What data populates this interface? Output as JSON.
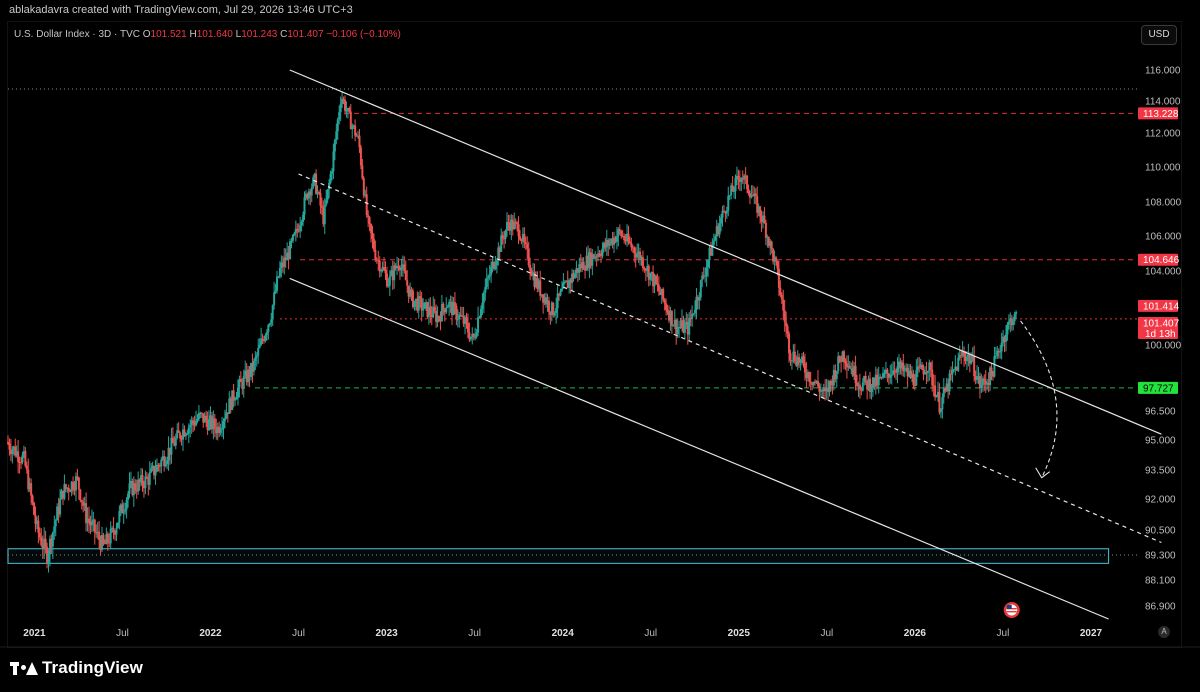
{
  "header": {
    "attribution": "ablakadavra created with TradingView.com, Jul 29, 2026 13:46 UTC+3"
  },
  "legend": {
    "symbol": "U.S. Dollar Index · 3D · TVC",
    "o_label": "O",
    "o_value": "101.521",
    "h_label": "H",
    "h_value": "101.640",
    "l_label": "L",
    "l_value": "101.243",
    "c_label": "C",
    "c_value": "101.407",
    "change": "−0.106 (−0.10%)"
  },
  "toolbar": {
    "currency": "USD",
    "auto_label": "A"
  },
  "footer": {
    "brand": "TradingView"
  },
  "colors": {
    "up": "#26a69a",
    "down": "#ef5350",
    "red_level": "#f23645",
    "green_level": "#22c55e",
    "zone": "#4cc3d9",
    "channel": "#e6e6e6",
    "axis_text": "#bdbdbd",
    "background": "#000000"
  },
  "icons": {
    "event_marker": "us-flag-icon",
    "logo": "tradingview-logo-icon"
  },
  "chart_data": {
    "type": "candlestick",
    "timeframe": "3D",
    "x_ticks": [
      "2021",
      "Jul",
      "2022",
      "Jul",
      "2023",
      "Jul",
      "2024",
      "Jul",
      "2025",
      "Jul",
      "2026",
      "Jul",
      "2027"
    ],
    "y_ticks": [
      "116.000",
      "114.000",
      "112.000",
      "110.000",
      "108.000",
      "106.000",
      "104.000",
      "100.000",
      "96.500",
      "95.000",
      "93.500",
      "92.000",
      "90.500",
      "89.300",
      "88.100",
      "86.900"
    ],
    "y_tick_values": [
      116,
      114,
      112,
      110,
      108,
      106,
      104,
      100,
      96.5,
      95,
      93.5,
      92,
      90.5,
      89.3,
      88.1,
      86.9
    ],
    "xlim": [
      2020.85,
      2027.25
    ],
    "ylim": [
      86.0,
      117.0
    ],
    "price_path": [
      [
        2020.85,
        94.9
      ],
      [
        2020.95,
        94.0
      ],
      [
        2021.02,
        90.6
      ],
      [
        2021.08,
        89.3
      ],
      [
        2021.17,
        92.4
      ],
      [
        2021.25,
        93.0
      ],
      [
        2021.3,
        91.2
      ],
      [
        2021.4,
        89.7
      ],
      [
        2021.45,
        90.3
      ],
      [
        2021.55,
        92.5
      ],
      [
        2021.65,
        93.0
      ],
      [
        2021.75,
        94.2
      ],
      [
        2021.85,
        95.5
      ],
      [
        2021.95,
        96.2
      ],
      [
        2022.05,
        95.6
      ],
      [
        2022.15,
        97.5
      ],
      [
        2022.25,
        98.8
      ],
      [
        2022.35,
        101.6
      ],
      [
        2022.4,
        104.0
      ],
      [
        2022.45,
        105.0
      ],
      [
        2022.5,
        106.3
      ],
      [
        2022.56,
        108.6
      ],
      [
        2022.6,
        109.2
      ],
      [
        2022.65,
        107.0
      ],
      [
        2022.7,
        110.2
      ],
      [
        2022.75,
        114.4
      ],
      [
        2022.8,
        112.8
      ],
      [
        2022.85,
        111.5
      ],
      [
        2022.9,
        106.8
      ],
      [
        2022.95,
        104.8
      ],
      [
        2023.02,
        103.4
      ],
      [
        2023.08,
        104.6
      ],
      [
        2023.15,
        102.5
      ],
      [
        2023.22,
        102.0
      ],
      [
        2023.3,
        101.5
      ],
      [
        2023.35,
        102.3
      ],
      [
        2023.45,
        101.2
      ],
      [
        2023.5,
        100.2
      ],
      [
        2023.55,
        102.5
      ],
      [
        2023.6,
        104.0
      ],
      [
        2023.7,
        106.8
      ],
      [
        2023.76,
        106.4
      ],
      [
        2023.85,
        103.5
      ],
      [
        2023.95,
        101.8
      ],
      [
        2024.02,
        103.1
      ],
      [
        2024.1,
        104.2
      ],
      [
        2024.25,
        105.4
      ],
      [
        2024.33,
        106.2
      ],
      [
        2024.45,
        104.8
      ],
      [
        2024.55,
        103.0
      ],
      [
        2024.65,
        101.0
      ],
      [
        2024.72,
        100.9
      ],
      [
        2024.8,
        103.5
      ],
      [
        2024.88,
        106.2
      ],
      [
        2024.95,
        108.2
      ],
      [
        2025.02,
        109.6
      ],
      [
        2025.08,
        108.5
      ],
      [
        2025.15,
        106.8
      ],
      [
        2025.22,
        104.2
      ],
      [
        2025.3,
        99.6
      ],
      [
        2025.35,
        99.2
      ],
      [
        2025.4,
        98.5
      ],
      [
        2025.5,
        97.3
      ],
      [
        2025.55,
        98.5
      ],
      [
        2025.6,
        99.6
      ],
      [
        2025.7,
        97.9
      ],
      [
        2025.8,
        98.0
      ],
      [
        2025.9,
        98.9
      ],
      [
        2026.0,
        98.2
      ],
      [
        2026.08,
        99.0
      ],
      [
        2026.15,
        96.8
      ],
      [
        2026.22,
        98.4
      ],
      [
        2026.28,
        99.6
      ],
      [
        2026.33,
        99.2
      ],
      [
        2026.38,
        97.8
      ],
      [
        2026.44,
        98.4
      ],
      [
        2026.5,
        100.2
      ],
      [
        2026.56,
        101.5
      ],
      [
        2026.58,
        101.41
      ]
    ],
    "horizontal_levels": [
      {
        "label": "113.228",
        "value": 113.228,
        "color": "red",
        "style": "dashed"
      },
      {
        "label": "104.646",
        "value": 104.646,
        "color": "red",
        "style": "dashed"
      },
      {
        "label": "101.414",
        "value": 101.414,
        "color": "red",
        "style": "dotted"
      },
      {
        "label": "97.727",
        "value": 97.727,
        "color": "green",
        "style": "dashed"
      }
    ],
    "price_labels": [
      {
        "text": "113.228",
        "value": 113.228,
        "color": "red"
      },
      {
        "text": "104.646",
        "value": 104.646,
        "color": "red"
      },
      {
        "text": "101.414",
        "value": 101.414,
        "color": "red"
      },
      {
        "text": "101.407",
        "value": 101.407,
        "countdown": "1d 13h",
        "color": "red"
      },
      {
        "text": "97.727",
        "value": 97.727,
        "color": "green"
      }
    ],
    "high_marker": {
      "value": 114.778
    },
    "zone": {
      "from": 88.9,
      "to": 89.6,
      "x_start": 2020.85,
      "x_end": 2027.1
    },
    "channel_lines": [
      {
        "points": [
          [
            2022.45,
            116.0
          ],
          [
            2027.4,
            95.3
          ]
        ],
        "style": "solid"
      },
      {
        "points": [
          [
            2022.5,
            109.6
          ],
          [
            2027.4,
            89.9
          ]
        ],
        "style": "dashed"
      },
      {
        "points": [
          [
            2022.45,
            103.6
          ],
          [
            2027.1,
            86.3
          ]
        ],
        "style": "solid"
      }
    ],
    "projection_arrow": {
      "from": [
        2026.6,
        101.3
      ],
      "to": [
        2026.72,
        93.1
      ],
      "style": "dashed"
    },
    "event_marker": {
      "x": 2026.55,
      "y": 87.0
    }
  }
}
